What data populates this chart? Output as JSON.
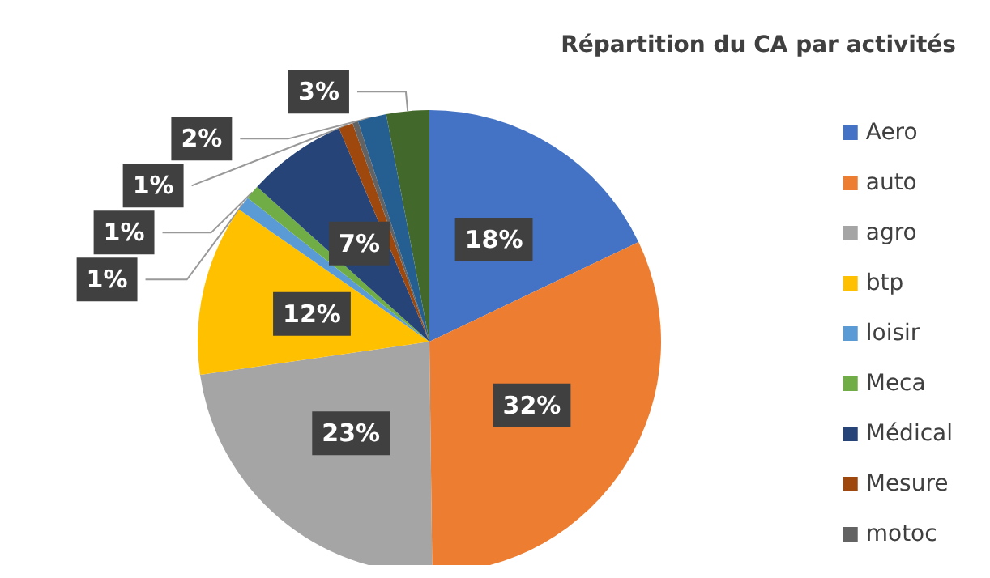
{
  "chart_data": {
    "type": "pie",
    "title": "Répartition du CA par activités",
    "categories": [
      "Aero",
      "auto",
      "agro",
      "btp",
      "loisir",
      "Meca",
      "Médical",
      "Mesure",
      "motoc",
      null,
      null
    ],
    "values": [
      18,
      32,
      23,
      12,
      1,
      1,
      7,
      1,
      0.4,
      2,
      3
    ],
    "value_labels": [
      "18%",
      "32%",
      "23%",
      "12%",
      "1%",
      "1%",
      "7%",
      "1%",
      null,
      "2%",
      "3%"
    ],
    "colors": [
      "#4472c4",
      "#ed7d31",
      "#a5a5a5",
      "#ffc000",
      "#5b9bd5",
      "#70ad47",
      "#264478",
      "#9e480e",
      "#636363",
      "#255e91",
      "#43682b"
    ],
    "legend": "right"
  }
}
